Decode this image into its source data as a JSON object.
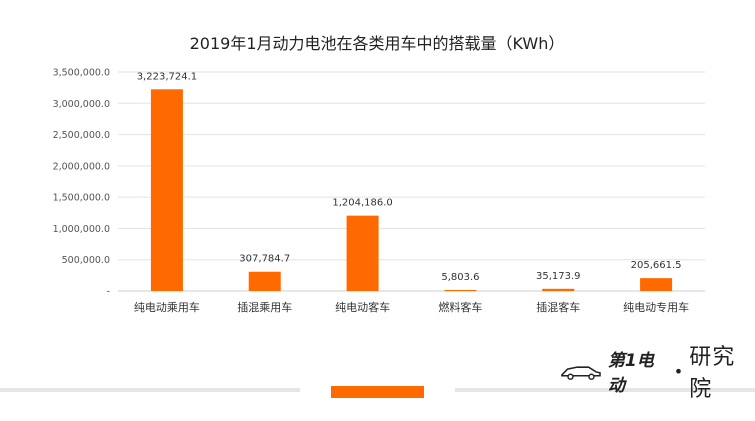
{
  "chart_data": {
    "type": "bar",
    "title": "2019年1月动力电池在各类用车中的搭载量（KWh）",
    "categories": [
      "纯电动乘用车",
      "插混乘用车",
      "纯电动客车",
      "燃料客车",
      "插混客车",
      "纯电动专用车"
    ],
    "values": [
      3223724.1,
      307784.7,
      1204186.0,
      5803.6,
      35173.9,
      205661.5
    ],
    "value_labels": [
      "3,223,724.1",
      "307,784.7",
      "1,204,186.0",
      "5,803.6",
      "35,173.9",
      "205,661.5"
    ],
    "ylim": [
      0,
      3500000
    ],
    "yticks": [
      0,
      500000,
      1000000,
      1500000,
      2000000,
      2500000,
      3000000,
      3500000
    ],
    "ytick_labels": [
      "-",
      "500,000.0",
      "1,000,000.0",
      "1,500,000.0",
      "2,000,000.0",
      "2,500,000.0",
      "3,000,000.0",
      "3,500,000.0"
    ],
    "xlabel": "",
    "ylabel": "",
    "grid": true,
    "bar_color": "#ff6a00",
    "grid_color": "#e3e3e3"
  },
  "footer": {
    "brand_name": "第1电动",
    "brand_separator": "•",
    "brand_institute": "研究院",
    "accent_color": "#ff6a00"
  }
}
